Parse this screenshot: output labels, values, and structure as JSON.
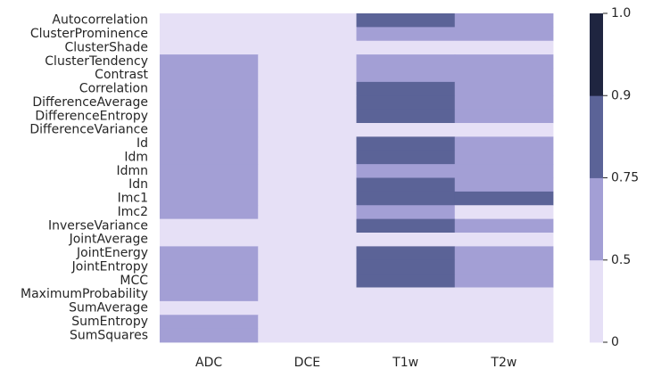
{
  "chart_data": {
    "type": "heatmap",
    "title": "",
    "xlabel": "",
    "ylabel": "",
    "x_categories": [
      "ADC",
      "DCE",
      "T1w",
      "T2w"
    ],
    "y_categories": [
      "Autocorrelation",
      "ClusterProminence",
      "ClusterShade",
      "ClusterTendency",
      "Contrast",
      "Correlation",
      "DifferenceAverage",
      "DifferenceEntropy",
      "DifferenceVariance",
      "Id",
      "Idm",
      "Idmn",
      "Idn",
      "Imc1",
      "Imc2",
      "InverseVariance",
      "JointAverage",
      "JointEnergy",
      "JointEntropy",
      "MCC",
      "MaximumProbability",
      "SumAverage",
      "SumEntropy",
      "SumSquares"
    ],
    "values": [
      [
        0.25,
        0.25,
        0.8,
        0.6
      ],
      [
        0.25,
        0.25,
        0.6,
        0.6
      ],
      [
        0.25,
        0.25,
        0.25,
        0.25
      ],
      [
        0.6,
        0.25,
        0.6,
        0.6
      ],
      [
        0.6,
        0.25,
        0.6,
        0.6
      ],
      [
        0.6,
        0.25,
        0.8,
        0.6
      ],
      [
        0.6,
        0.25,
        0.8,
        0.6
      ],
      [
        0.6,
        0.25,
        0.8,
        0.6
      ],
      [
        0.6,
        0.25,
        0.25,
        0.25
      ],
      [
        0.6,
        0.25,
        0.8,
        0.6
      ],
      [
        0.6,
        0.25,
        0.8,
        0.6
      ],
      [
        0.6,
        0.25,
        0.6,
        0.6
      ],
      [
        0.6,
        0.25,
        0.8,
        0.6
      ],
      [
        0.6,
        0.25,
        0.8,
        0.8
      ],
      [
        0.6,
        0.25,
        0.6,
        0.25
      ],
      [
        0.25,
        0.25,
        0.8,
        0.6
      ],
      [
        0.25,
        0.25,
        0.25,
        0.25
      ],
      [
        0.6,
        0.25,
        0.8,
        0.6
      ],
      [
        0.6,
        0.25,
        0.8,
        0.6
      ],
      [
        0.6,
        0.25,
        0.8,
        0.6
      ],
      [
        0.6,
        0.25,
        0.25,
        0.25
      ],
      [
        0.25,
        0.25,
        0.25,
        0.25
      ],
      [
        0.6,
        0.25,
        0.25,
        0.25
      ],
      [
        0.6,
        0.25,
        0.25,
        0.25
      ]
    ],
    "colorbar": {
      "boundaries": [
        0,
        0.5,
        0.75,
        0.9,
        1.0
      ],
      "tick_labels": [
        "0",
        "0.5",
        "0.75",
        "0.9",
        "1.0"
      ],
      "colors": [
        "#e6e0f6",
        "#a39fd5",
        "#5b6397",
        "#1f2540"
      ]
    },
    "grid": false,
    "legend": "colorbar-right"
  }
}
